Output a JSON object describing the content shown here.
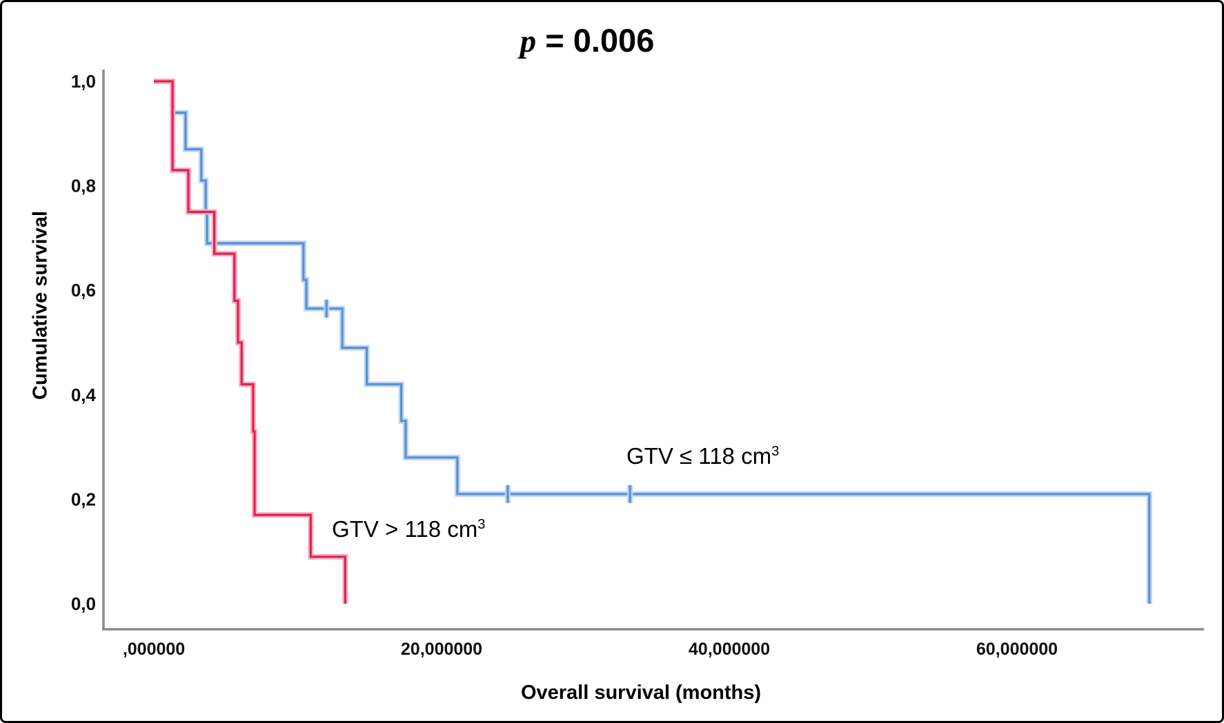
{
  "figure": {
    "title_p": "p",
    "title_rest": " = 0.006"
  },
  "chart_data": {
    "type": "line",
    "subtype": "kaplan-meier-step",
    "title": "p = 0.006",
    "xlabel": "Overall survival (months)",
    "ylabel": "Cumulative survival",
    "xlim": [
      0,
      73
    ],
    "ylim": [
      0.0,
      1.0
    ],
    "grid": false,
    "legend_position": "inline-annotations",
    "x_ticks": [
      {
        "value": 0,
        "label": ",000000"
      },
      {
        "value": 20,
        "label": "20,000000"
      },
      {
        "value": 40,
        "label": "40,000000"
      },
      {
        "value": 60,
        "label": "60,000000"
      }
    ],
    "y_ticks": [
      {
        "value": 1.0,
        "label": "1,0"
      },
      {
        "value": 0.8,
        "label": "0,8"
      },
      {
        "value": 0.6,
        "label": "0,6"
      },
      {
        "value": 0.4,
        "label": "0,4"
      },
      {
        "value": 0.2,
        "label": "0,2"
      },
      {
        "value": 0.0,
        "label": "0,0"
      }
    ],
    "axis_color": "#8a8a8a",
    "series": [
      {
        "name": "GTV ≤ 118 cm³",
        "label_text": "GTV ≤ 118 cm",
        "label_sup": "3",
        "color": "#5b8ed5",
        "halo_color": "#bdd5f2",
        "steps": [
          [
            0,
            1.0
          ],
          [
            1.3,
            0.94
          ],
          [
            2.2,
            0.87
          ],
          [
            3.3,
            0.81
          ],
          [
            3.6,
            0.75
          ],
          [
            3.7,
            0.69
          ],
          [
            10.4,
            0.62
          ],
          [
            10.6,
            0.565
          ],
          [
            13.1,
            0.49
          ],
          [
            14.8,
            0.42
          ],
          [
            17.2,
            0.35
          ],
          [
            17.5,
            0.28
          ],
          [
            21.1,
            0.21
          ],
          [
            69.2,
            0.0
          ]
        ],
        "censor_marks": [
          [
            12.0,
            0.565
          ],
          [
            24.6,
            0.21
          ],
          [
            33.1,
            0.21
          ]
        ]
      },
      {
        "name": "GTV > 118 cm³",
        "label_text": "GTV > 118 cm",
        "label_sup": "3",
        "color": "#e2204e",
        "halo_color": "#f6b0c2",
        "steps": [
          [
            0,
            1.0
          ],
          [
            1.3,
            0.83
          ],
          [
            2.4,
            0.75
          ],
          [
            4.2,
            0.67
          ],
          [
            5.6,
            0.58
          ],
          [
            5.85,
            0.5
          ],
          [
            6.1,
            0.42
          ],
          [
            6.9,
            0.33
          ],
          [
            7.0,
            0.17
          ],
          [
            10.9,
            0.09
          ],
          [
            13.3,
            0.0
          ]
        ],
        "censor_marks": []
      }
    ]
  }
}
